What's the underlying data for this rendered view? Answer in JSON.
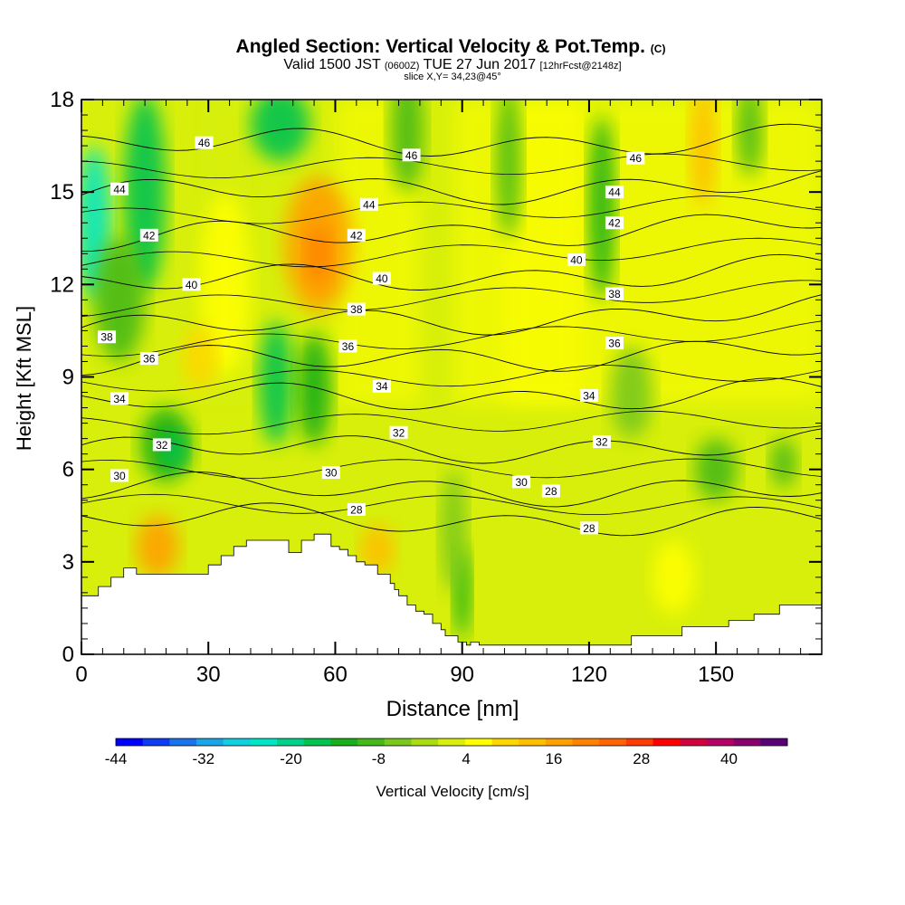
{
  "title": "Angled Section: Vertical Velocity & Pot.Temp.",
  "title_suffix": "(C)",
  "subtitle_parts": [
    "Valid 1500 JST",
    "(0600Z)",
    "TUE 27 Jun 2017",
    "[12hrFcst@2148z]"
  ],
  "slice_note": "slice X,Y= 34,23@45°",
  "chart_data": {
    "type": "heatmap",
    "xlabel": "Distance [nm]",
    "ylabel": "Height [Kft MSL]",
    "xlim": [
      0,
      175
    ],
    "ylim": [
      0,
      18
    ],
    "x_ticks": [
      0,
      30,
      60,
      90,
      120,
      150
    ],
    "y_ticks": [
      0,
      3,
      6,
      9,
      12,
      15,
      18
    ],
    "colorbar": {
      "label": "Vertical Velocity [cm/s]",
      "range": [
        -44,
        48
      ],
      "tick_values": [
        -44,
        -32,
        -20,
        -8,
        4,
        16,
        28,
        40
      ],
      "colors": [
        "#0000ff",
        "#0d3cf5",
        "#1a73eb",
        "#1aa5e6",
        "#10cfe0",
        "#00e6c8",
        "#00d28c",
        "#00c350",
        "#18af18",
        "#46b918",
        "#78c81e",
        "#aadc14",
        "#d7ef0a",
        "#ffff00",
        "#ffd700",
        "#ffbe00",
        "#ffa000",
        "#ff8200",
        "#ff6400",
        "#ff3c00",
        "#ff0000",
        "#d2003c",
        "#b40064",
        "#87006e",
        "#5a0078"
      ]
    },
    "terrain_kft": {
      "x": [
        0,
        4,
        7,
        10,
        13,
        28,
        30,
        33,
        36,
        39,
        43,
        48,
        49,
        51,
        52,
        55,
        58,
        59,
        61,
        63,
        65,
        67,
        68,
        70,
        71,
        73,
        74,
        75,
        77,
        79,
        81,
        83,
        85,
        86,
        88,
        89,
        91,
        92,
        94,
        97,
        118,
        122,
        129,
        130,
        133,
        135,
        141,
        142,
        145,
        152,
        153,
        158,
        159,
        163,
        165,
        175
      ],
      "y": [
        1.9,
        2.2,
        2.5,
        2.8,
        2.6,
        2.6,
        2.9,
        3.2,
        3.5,
        3.7,
        3.7,
        3.7,
        3.3,
        3.3,
        3.7,
        3.9,
        3.9,
        3.5,
        3.4,
        3.2,
        3.0,
        2.9,
        2.9,
        2.6,
        2.6,
        2.3,
        2.1,
        1.9,
        1.6,
        1.4,
        1.3,
        1.0,
        0.8,
        0.6,
        0.6,
        0.4,
        0.3,
        0.4,
        0.3,
        0.3,
        0.3,
        0.3,
        0.3,
        0.6,
        0.6,
        0.6,
        0.6,
        0.9,
        0.9,
        0.9,
        1.1,
        1.1,
        1.3,
        1.3,
        1.6,
        1.6
      ]
    },
    "theta_contours": [
      {
        "value": 28,
        "y0": 4.4,
        "y1": 4.3,
        "label_x": 65,
        "label_x2": 120
      },
      {
        "value": 30,
        "y0": 5.4,
        "y1": 5.3,
        "label_x": 8,
        "label_x2": 104
      },
      {
        "value": 32,
        "y0": 6.6,
        "y1": 6.8,
        "label_x": 19,
        "label_x2": 123
      },
      {
        "value": 34,
        "y0": 8.2,
        "y1": 8.5,
        "label_x": 9,
        "label_x2": 120
      },
      {
        "value": 36,
        "y0": 9.4,
        "y1": 9.9,
        "label_x": 16,
        "label_x2": 126
      },
      {
        "value": 38,
        "y0": 10.5,
        "y1": 11.2,
        "label_x": 6,
        "label_x2": 126
      },
      {
        "value": 40,
        "y0": 12.0,
        "y1": 12.5,
        "label_x": 26,
        "label_x2": 117
      },
      {
        "value": 42,
        "y0": 13.4,
        "y1": 14.0,
        "label_x": 16,
        "label_x2": 126
      },
      {
        "value": 44,
        "y0": 14.9,
        "y1": 15.3,
        "label_x": 9,
        "label_x2": 126
      },
      {
        "value": 46,
        "y0": 16.5,
        "y1": 16.7,
        "label_x": 30,
        "label_x2": 130
      }
    ],
    "label_tags": [
      {
        "text": "28",
        "x": 65,
        "y": 4.7
      },
      {
        "text": "28",
        "x": 120,
        "y": 4.1
      },
      {
        "text": "28",
        "x": 111,
        "y": 5.3
      },
      {
        "text": "30",
        "x": 9,
        "y": 5.8
      },
      {
        "text": "30",
        "x": 59,
        "y": 5.9
      },
      {
        "text": "30",
        "x": 104,
        "y": 5.6
      },
      {
        "text": "32",
        "x": 19,
        "y": 6.8
      },
      {
        "text": "32",
        "x": 75,
        "y": 7.2
      },
      {
        "text": "32",
        "x": 123,
        "y": 6.9
      },
      {
        "text": "34",
        "x": 9,
        "y": 8.3
      },
      {
        "text": "34",
        "x": 71,
        "y": 8.7
      },
      {
        "text": "34",
        "x": 120,
        "y": 8.4
      },
      {
        "text": "36",
        "x": 16,
        "y": 9.6
      },
      {
        "text": "36",
        "x": 63,
        "y": 10.0
      },
      {
        "text": "36",
        "x": 126,
        "y": 10.1
      },
      {
        "text": "38",
        "x": 6,
        "y": 10.3
      },
      {
        "text": "38",
        "x": 65,
        "y": 11.2
      },
      {
        "text": "38",
        "x": 126,
        "y": 11.7
      },
      {
        "text": "40",
        "x": 26,
        "y": 12.0
      },
      {
        "text": "40",
        "x": 71,
        "y": 12.2
      },
      {
        "text": "40",
        "x": 117,
        "y": 12.8
      },
      {
        "text": "42",
        "x": 16,
        "y": 13.6
      },
      {
        "text": "42",
        "x": 65,
        "y": 13.6
      },
      {
        "text": "42",
        "x": 126,
        "y": 14.0
      },
      {
        "text": "44",
        "x": 9,
        "y": 15.1
      },
      {
        "text": "44",
        "x": 68,
        "y": 14.6
      },
      {
        "text": "44",
        "x": 126,
        "y": 15.0
      },
      {
        "text": "46",
        "x": 29,
        "y": 16.6
      },
      {
        "text": "46",
        "x": 78,
        "y": 16.2
      },
      {
        "text": "46",
        "x": 131,
        "y": 16.1
      }
    ],
    "velocity_features": [
      {
        "x": 15,
        "y": 15.0,
        "v": -16,
        "rx": 5,
        "ry": 3.2
      },
      {
        "x": 3,
        "y": 14.0,
        "v": -24,
        "rx": 4,
        "ry": 2.5
      },
      {
        "x": 9,
        "y": 11.5,
        "v": -10,
        "rx": 6,
        "ry": 2.0
      },
      {
        "x": 20,
        "y": 6.8,
        "v": -12,
        "rx": 6,
        "ry": 1.2
      },
      {
        "x": 22,
        "y": 6.6,
        "v": -18,
        "rx": 3,
        "ry": 0.6
      },
      {
        "x": 46,
        "y": 8.8,
        "v": -16,
        "rx": 4,
        "ry": 2.0
      },
      {
        "x": 55,
        "y": 8.6,
        "v": -14,
        "rx": 4,
        "ry": 1.8
      },
      {
        "x": 56,
        "y": 13.3,
        "v": 16,
        "rx": 8,
        "ry": 2.2
      },
      {
        "x": 56,
        "y": 13.0,
        "v": 22,
        "rx": 3,
        "ry": 1.0
      },
      {
        "x": 47,
        "y": 17.2,
        "v": -18,
        "rx": 7,
        "ry": 1.2
      },
      {
        "x": 77,
        "y": 17.0,
        "v": -8,
        "rx": 4,
        "ry": 2.0
      },
      {
        "x": 101,
        "y": 16.0,
        "v": -8,
        "rx": 3,
        "ry": 2.5
      },
      {
        "x": 123,
        "y": 14.5,
        "v": -12,
        "rx": 3,
        "ry": 3.0
      },
      {
        "x": 147,
        "y": 16.5,
        "v": 12,
        "rx": 3,
        "ry": 2.0
      },
      {
        "x": 158,
        "y": 17.0,
        "v": -8,
        "rx": 3,
        "ry": 1.5
      },
      {
        "x": 90,
        "y": 2.0,
        "v": -14,
        "rx": 2,
        "ry": 1.5
      },
      {
        "x": 88,
        "y": 4.0,
        "v": -6,
        "rx": 3,
        "ry": 2.0
      },
      {
        "x": 70,
        "y": 3.4,
        "v": 14,
        "rx": 4,
        "ry": 0.8
      },
      {
        "x": 18,
        "y": 3.5,
        "v": 16,
        "rx": 5,
        "ry": 1.0
      },
      {
        "x": 34,
        "y": 12.0,
        "v": 6,
        "rx": 6,
        "ry": 3.0
      },
      {
        "x": 28,
        "y": 9.6,
        "v": 8,
        "rx": 4,
        "ry": 1.0
      },
      {
        "x": 150,
        "y": 6.0,
        "v": -8,
        "rx": 5,
        "ry": 1.0
      },
      {
        "x": 166,
        "y": 6.2,
        "v": -8,
        "rx": 3,
        "ry": 0.8
      },
      {
        "x": 130,
        "y": 8.5,
        "v": -6,
        "rx": 5,
        "ry": 1.5
      },
      {
        "x": 140,
        "y": 2.5,
        "v": 6,
        "rx": 5,
        "ry": 1.2
      }
    ]
  }
}
